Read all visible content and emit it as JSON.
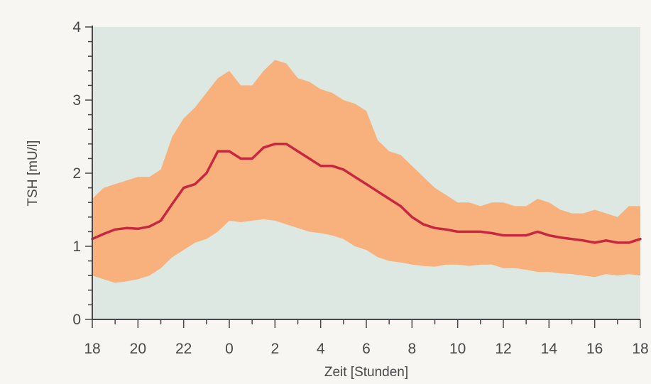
{
  "chart_data": {
    "type": "area",
    "title": "",
    "xlabel": "Zeit [Stunden]",
    "ylabel": "TSH [mU/l]",
    "xlim": [
      0,
      24
    ],
    "ylim": [
      0,
      4
    ],
    "x_ticks": [
      0,
      2,
      4,
      6,
      8,
      10,
      12,
      14,
      16,
      18,
      20,
      22,
      24
    ],
    "x_tick_labels": [
      "18",
      "20",
      "22",
      "0",
      "2",
      "4",
      "6",
      "8",
      "10",
      "12",
      "14",
      "16",
      "18"
    ],
    "y_ticks": [
      0,
      1,
      2,
      3,
      4
    ],
    "y_tick_labels": [
      "0",
      "1",
      "2",
      "3",
      "4"
    ],
    "grid": false,
    "plot_background": "#dce8e1",
    "band_color": "#f8b07c",
    "line_color": "#c8283f",
    "x": [
      0,
      0.5,
      1,
      1.5,
      2,
      2.5,
      3,
      3.5,
      4,
      4.5,
      5,
      5.5,
      6,
      6.5,
      7,
      7.5,
      8,
      8.5,
      9,
      9.5,
      10,
      10.5,
      11,
      11.5,
      12,
      12.5,
      13,
      13.5,
      14,
      14.5,
      15,
      15.5,
      16,
      16.5,
      17,
      17.5,
      18,
      18.5,
      19,
      19.5,
      20,
      20.5,
      21,
      21.5,
      22,
      22.5,
      23,
      23.5,
      24
    ],
    "series": [
      {
        "name": "",
        "role": "mean",
        "values": [
          1.1,
          1.17,
          1.23,
          1.25,
          1.24,
          1.27,
          1.35,
          1.58,
          1.8,
          1.85,
          2.0,
          2.3,
          2.3,
          2.2,
          2.2,
          2.35,
          2.4,
          2.4,
          2.3,
          2.2,
          2.1,
          2.1,
          2.05,
          1.95,
          1.85,
          1.75,
          1.65,
          1.55,
          1.4,
          1.3,
          1.25,
          1.23,
          1.2,
          1.2,
          1.2,
          1.18,
          1.15,
          1.15,
          1.15,
          1.2,
          1.15,
          1.12,
          1.1,
          1.08,
          1.05,
          1.08,
          1.05,
          1.05,
          1.1
        ]
      },
      {
        "name": "",
        "role": "band_upper",
        "values": [
          1.65,
          1.8,
          1.85,
          1.9,
          1.95,
          1.95,
          2.05,
          2.5,
          2.75,
          2.9,
          3.1,
          3.3,
          3.4,
          3.2,
          3.2,
          3.4,
          3.55,
          3.5,
          3.3,
          3.25,
          3.15,
          3.1,
          3.0,
          2.95,
          2.85,
          2.45,
          2.3,
          2.25,
          2.1,
          1.95,
          1.8,
          1.7,
          1.6,
          1.6,
          1.55,
          1.6,
          1.6,
          1.55,
          1.55,
          1.65,
          1.6,
          1.5,
          1.45,
          1.45,
          1.5,
          1.45,
          1.4,
          1.55,
          1.55
        ]
      },
      {
        "name": "",
        "role": "band_lower",
        "values": [
          0.6,
          0.55,
          0.5,
          0.52,
          0.55,
          0.6,
          0.7,
          0.85,
          0.95,
          1.05,
          1.1,
          1.2,
          1.35,
          1.33,
          1.35,
          1.37,
          1.35,
          1.3,
          1.25,
          1.2,
          1.18,
          1.15,
          1.1,
          1.0,
          0.95,
          0.85,
          0.8,
          0.78,
          0.75,
          0.73,
          0.72,
          0.75,
          0.75,
          0.73,
          0.75,
          0.75,
          0.7,
          0.7,
          0.68,
          0.65,
          0.65,
          0.63,
          0.62,
          0.6,
          0.58,
          0.62,
          0.6,
          0.62,
          0.6
        ]
      }
    ]
  }
}
